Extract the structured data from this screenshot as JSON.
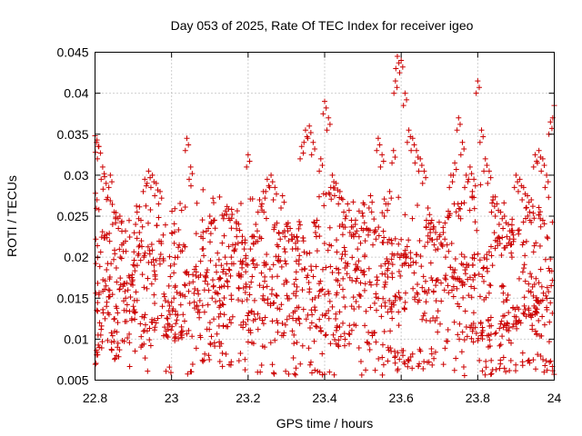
{
  "chart_data": {
    "type": "scatter",
    "title": "Day 053 of 2025, Rate Of TEC Index for receiver igeo",
    "xlabel": "GPS time / hours",
    "ylabel": "ROTI / TECUs",
    "xlim": [
      22.8,
      24.0
    ],
    "ylim": [
      0.005,
      0.045
    ],
    "x_ticks": [
      "22.8",
      "23",
      "23.2",
      "23.4",
      "23.6",
      "23.8",
      "24"
    ],
    "y_ticks": [
      "0.005",
      "0.01",
      "0.015",
      "0.02",
      "0.025",
      "0.03",
      "0.035",
      "0.04",
      "0.045"
    ],
    "grid": true,
    "marker": "plus",
    "color": "#cc0000",
    "point_count_estimate": 1400,
    "series": [
      {
        "name": "ROTI",
        "x": [
          22.8,
          22.801,
          22.802,
          22.805,
          22.81,
          22.812,
          22.815,
          22.82,
          22.825,
          22.83,
          22.835,
          22.84,
          22.85,
          22.855,
          22.86,
          22.865,
          22.87,
          22.88,
          22.89,
          22.9,
          22.91,
          22.92,
          22.93,
          22.94,
          22.95,
          22.96,
          22.97,
          22.98,
          22.99,
          23.0,
          23.01,
          23.02,
          23.03,
          23.04,
          23.05,
          23.06,
          23.07,
          23.08,
          23.09,
          23.1,
          23.11,
          23.12,
          23.13,
          23.14,
          23.15,
          23.16,
          23.17,
          23.18,
          23.19,
          23.2,
          23.21,
          23.22,
          23.23,
          23.24,
          23.25,
          23.26,
          23.27,
          23.28,
          23.29,
          23.3,
          23.31,
          23.32,
          23.33,
          23.34,
          23.35,
          23.36,
          23.37,
          23.38,
          23.39,
          23.4,
          23.41,
          23.42,
          23.43,
          23.44,
          23.45,
          23.46,
          23.47,
          23.48,
          23.49,
          23.5,
          23.51,
          23.52,
          23.53,
          23.54,
          23.55,
          23.56,
          23.57,
          23.58,
          23.585,
          23.59,
          23.6,
          23.61,
          23.62,
          23.63,
          23.64,
          23.65,
          23.66,
          23.67,
          23.68,
          23.69,
          23.7,
          23.71,
          23.72,
          23.73,
          23.74,
          23.75,
          23.76,
          23.77,
          23.78,
          23.79,
          23.8,
          23.81,
          23.82,
          23.83,
          23.84,
          23.85,
          23.86,
          23.87,
          23.88,
          23.89,
          23.9,
          23.91,
          23.92,
          23.93,
          23.94,
          23.95,
          23.96,
          23.97,
          23.98,
          23.99,
          24.0
        ],
        "y": [
          0.0348,
          0.0278,
          0.0222,
          0.0343,
          0.0335,
          0.012,
          0.0105,
          0.031,
          0.0298,
          0.014,
          0.016,
          0.03,
          0.0255,
          0.014,
          0.0095,
          0.025,
          0.0215,
          0.015,
          0.0175,
          0.014,
          0.0255,
          0.0245,
          0.0295,
          0.0305,
          0.03,
          0.029,
          0.028,
          0.0155,
          0.0125,
          0.0145,
          0.0165,
          0.0215,
          0.013,
          0.0345,
          0.031,
          0.0185,
          0.0155,
          0.021,
          0.0175,
          0.025,
          0.0165,
          0.0205,
          0.019,
          0.02,
          0.0185,
          0.0215,
          0.0225,
          0.0195,
          0.021,
          0.0325,
          0.0225,
          0.024,
          0.027,
          0.028,
          0.0295,
          0.03,
          0.0285,
          0.023,
          0.0275,
          0.024,
          0.0235,
          0.0225,
          0.021,
          0.0335,
          0.0355,
          0.036,
          0.034,
          0.0245,
          0.032,
          0.039,
          0.037,
          0.03,
          0.029,
          0.028,
          0.0255,
          0.0265,
          0.0245,
          0.024,
          0.0225,
          0.025,
          0.0235,
          0.0275,
          0.023,
          0.0345,
          0.0325,
          0.0265,
          0.028,
          0.033,
          0.0415,
          0.0445,
          0.044,
          0.04,
          0.0355,
          0.0345,
          0.033,
          0.032,
          0.0305,
          0.026,
          0.0245,
          0.023,
          0.0225,
          0.023,
          0.0215,
          0.03,
          0.0315,
          0.037,
          0.034,
          0.03,
          0.031,
          0.0295,
          0.0415,
          0.0355,
          0.032,
          0.0305,
          0.027,
          0.0265,
          0.0255,
          0.025,
          0.024,
          0.023,
          0.03,
          0.0295,
          0.0285,
          0.0275,
          0.027,
          0.0325,
          0.033,
          0.032,
          0.03,
          0.0365,
          0.0385
        ]
      }
    ]
  }
}
